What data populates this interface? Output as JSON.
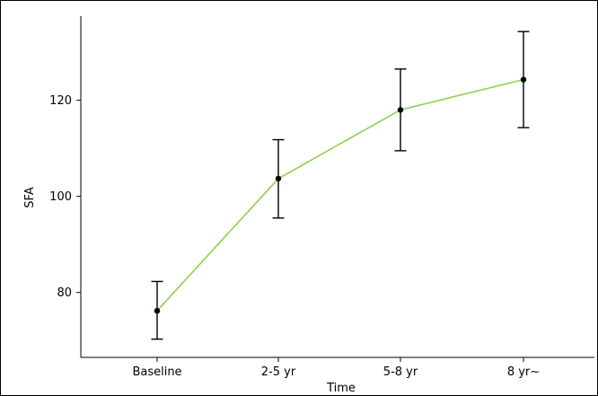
{
  "chart_data": {
    "type": "line",
    "title": "",
    "xlabel": "Time",
    "ylabel": "SFA",
    "categories": [
      "Baseline",
      "2-5 yr",
      "5-8 yr",
      "8 yr~"
    ],
    "series": [
      {
        "values": [
          76.2,
          103.7,
          118.0,
          124.3
        ],
        "error_low": [
          70.3,
          95.5,
          109.5,
          114.3
        ],
        "error_high": [
          82.3,
          111.8,
          126.5,
          134.3
        ],
        "color": "#8fd14f"
      }
    ],
    "yticks": [
      80,
      100,
      120
    ],
    "ylim": [
      66.5,
      137.5
    ],
    "grid": false,
    "legend": "none"
  }
}
